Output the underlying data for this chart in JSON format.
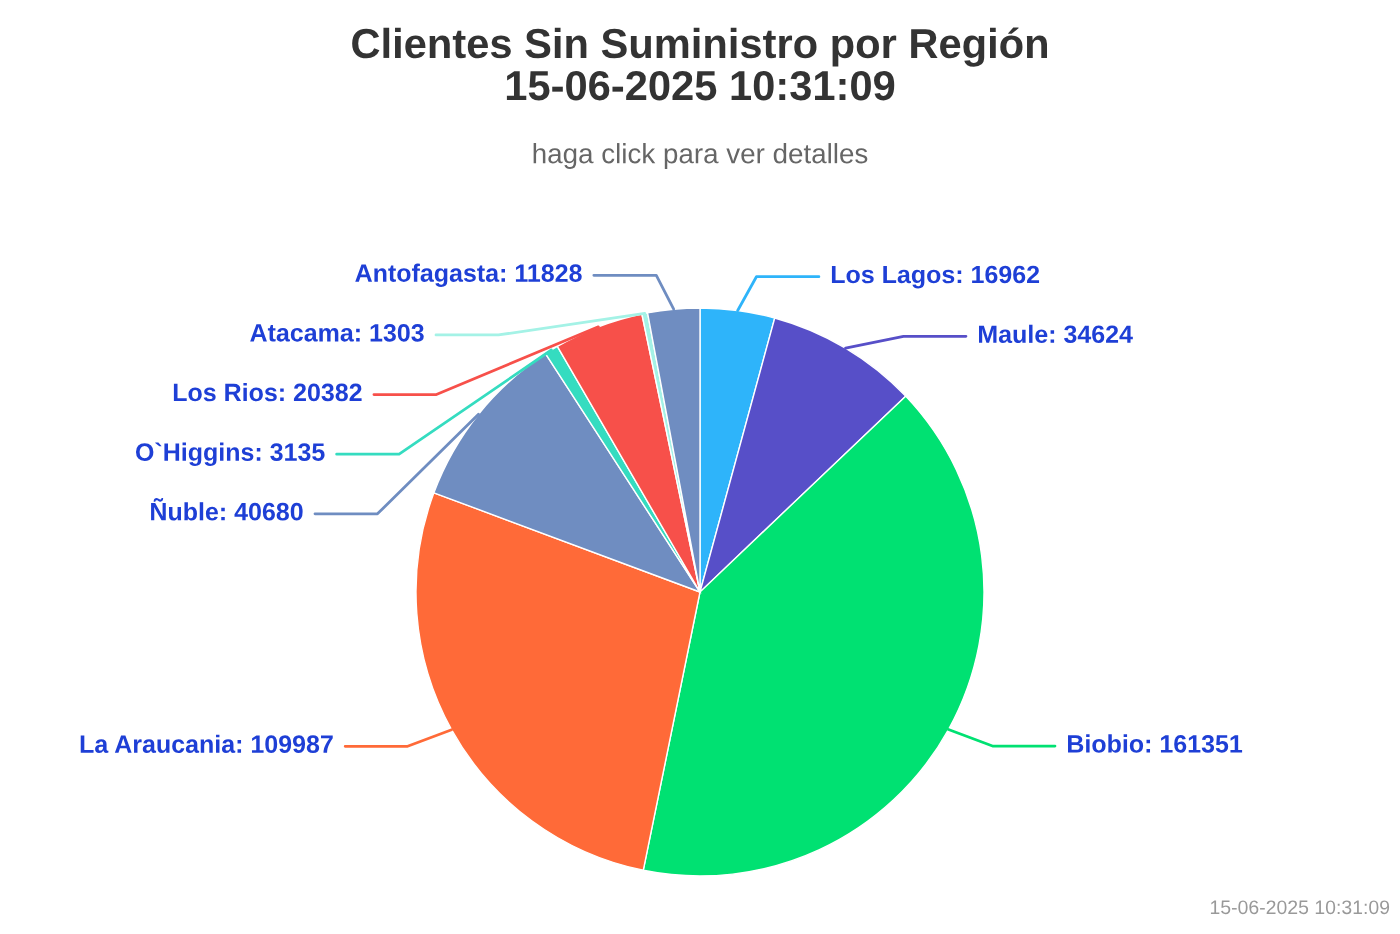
{
  "chart_data": {
    "type": "pie",
    "title": "Clientes Sin Suministro por Región\n15-06-2025 10:31:09",
    "subtitle": "haga click para ver detalles",
    "categories": [
      "Los Lagos: 16962",
      "Maule: 34624",
      "Biobio: 161351",
      "La Araucania: 109987",
      "Ñuble: 40680",
      "O`Higgins: 3135",
      "Los Rios: 20382",
      "Atacama: 1303",
      "Antofagasta: 11828"
    ],
    "values": [
      16962,
      34624,
      161351,
      109987,
      40680,
      3135,
      20382,
      1303,
      11828
    ],
    "colors": [
      "#2eb4fa",
      "#574fc8",
      "#00e172",
      "#ff6a38",
      "#6f8dc1",
      "#35dcc0",
      "#f7504a",
      "#a4f2e6",
      "#6f8dc1"
    ],
    "annotations": [
      "15-06-2025 10:31:09"
    ]
  }
}
